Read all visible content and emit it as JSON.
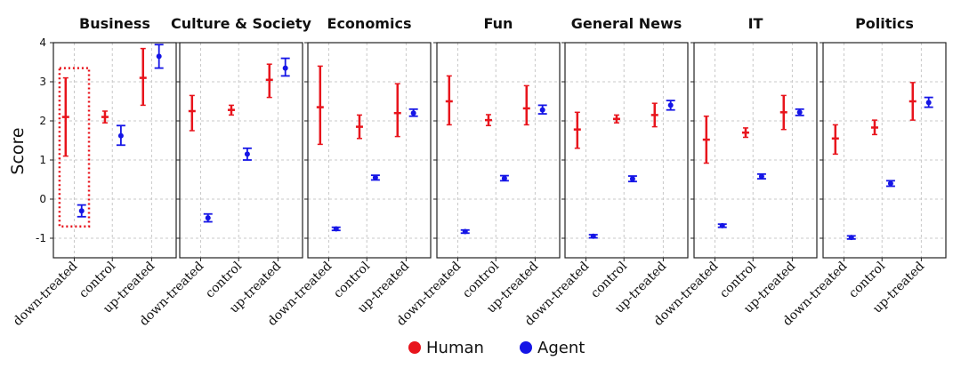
{
  "chart_data": {
    "type": "errorbar",
    "ylabel": "Score",
    "ylim": [
      -1.5,
      4
    ],
    "yticks": [
      -1,
      0,
      1,
      2,
      3,
      4
    ],
    "categories": [
      "down-treated",
      "control",
      "up-treated"
    ],
    "legend": [
      {
        "name": "Human",
        "color": "#e8141c"
      },
      {
        "name": "Agent",
        "color": "#1515e6"
      }
    ],
    "highlight": {
      "panel": "Business",
      "category": "down-treated",
      "color": "#e8141c",
      "style": "dotted"
    },
    "panels": [
      {
        "title": "Business",
        "human": [
          {
            "mean": 2.1,
            "lo": 1.1,
            "hi": 3.1
          },
          {
            "mean": 2.1,
            "lo": 1.95,
            "hi": 2.25
          },
          {
            "mean": 3.1,
            "lo": 2.4,
            "hi": 3.85
          }
        ],
        "agent": [
          {
            "mean": -0.3,
            "lo": -0.45,
            "hi": -0.15
          },
          {
            "mean": 1.62,
            "lo": 1.38,
            "hi": 1.88
          },
          {
            "mean": 3.65,
            "lo": 3.35,
            "hi": 3.95
          }
        ]
      },
      {
        "title": "Culture & Society",
        "human": [
          {
            "mean": 2.25,
            "lo": 1.75,
            "hi": 2.65
          },
          {
            "mean": 2.28,
            "lo": 2.15,
            "hi": 2.4
          },
          {
            "mean": 3.05,
            "lo": 2.6,
            "hi": 3.45
          }
        ],
        "agent": [
          {
            "mean": -0.48,
            "lo": -0.58,
            "hi": -0.38
          },
          {
            "mean": 1.15,
            "lo": 1.0,
            "hi": 1.3
          },
          {
            "mean": 3.35,
            "lo": 3.15,
            "hi": 3.6
          }
        ]
      },
      {
        "title": "Economics",
        "human": [
          {
            "mean": 2.35,
            "lo": 1.4,
            "hi": 3.4
          },
          {
            "mean": 1.85,
            "lo": 1.55,
            "hi": 2.15
          },
          {
            "mean": 2.2,
            "lo": 1.6,
            "hi": 2.95
          }
        ],
        "agent": [
          {
            "mean": -0.76,
            "lo": -0.8,
            "hi": -0.72
          },
          {
            "mean": 0.55,
            "lo": 0.49,
            "hi": 0.61
          },
          {
            "mean": 2.2,
            "lo": 2.12,
            "hi": 2.3
          }
        ]
      },
      {
        "title": "Fun",
        "human": [
          {
            "mean": 2.5,
            "lo": 1.9,
            "hi": 3.15
          },
          {
            "mean": 2.02,
            "lo": 1.88,
            "hi": 2.16
          },
          {
            "mean": 2.32,
            "lo": 1.9,
            "hi": 2.9
          }
        ],
        "agent": [
          {
            "mean": -0.83,
            "lo": -0.87,
            "hi": -0.79
          },
          {
            "mean": 0.53,
            "lo": 0.47,
            "hi": 0.6
          },
          {
            "mean": 2.28,
            "lo": 2.18,
            "hi": 2.4
          }
        ]
      },
      {
        "title": "General News",
        "human": [
          {
            "mean": 1.78,
            "lo": 1.3,
            "hi": 2.22
          },
          {
            "mean": 2.05,
            "lo": 1.95,
            "hi": 2.15
          },
          {
            "mean": 2.15,
            "lo": 1.85,
            "hi": 2.45
          }
        ],
        "agent": [
          {
            "mean": -0.95,
            "lo": -0.99,
            "hi": -0.91
          },
          {
            "mean": 0.52,
            "lo": 0.45,
            "hi": 0.59
          },
          {
            "mean": 2.4,
            "lo": 2.28,
            "hi": 2.52
          }
        ]
      },
      {
        "title": "IT",
        "human": [
          {
            "mean": 1.52,
            "lo": 0.92,
            "hi": 2.12
          },
          {
            "mean": 1.7,
            "lo": 1.58,
            "hi": 1.82
          },
          {
            "mean": 2.22,
            "lo": 1.78,
            "hi": 2.65
          }
        ],
        "agent": [
          {
            "mean": -0.68,
            "lo": -0.72,
            "hi": -0.64
          },
          {
            "mean": 0.58,
            "lo": 0.52,
            "hi": 0.64
          },
          {
            "mean": 2.22,
            "lo": 2.14,
            "hi": 2.3
          }
        ]
      },
      {
        "title": "Politics",
        "human": [
          {
            "mean": 1.55,
            "lo": 1.15,
            "hi": 1.9
          },
          {
            "mean": 1.83,
            "lo": 1.65,
            "hi": 2.02
          },
          {
            "mean": 2.5,
            "lo": 2.02,
            "hi": 2.98
          }
        ],
        "agent": [
          {
            "mean": -0.98,
            "lo": -1.02,
            "hi": -0.94
          },
          {
            "mean": 0.4,
            "lo": 0.33,
            "hi": 0.47
          },
          {
            "mean": 2.47,
            "lo": 2.35,
            "hi": 2.6
          }
        ]
      }
    ]
  }
}
